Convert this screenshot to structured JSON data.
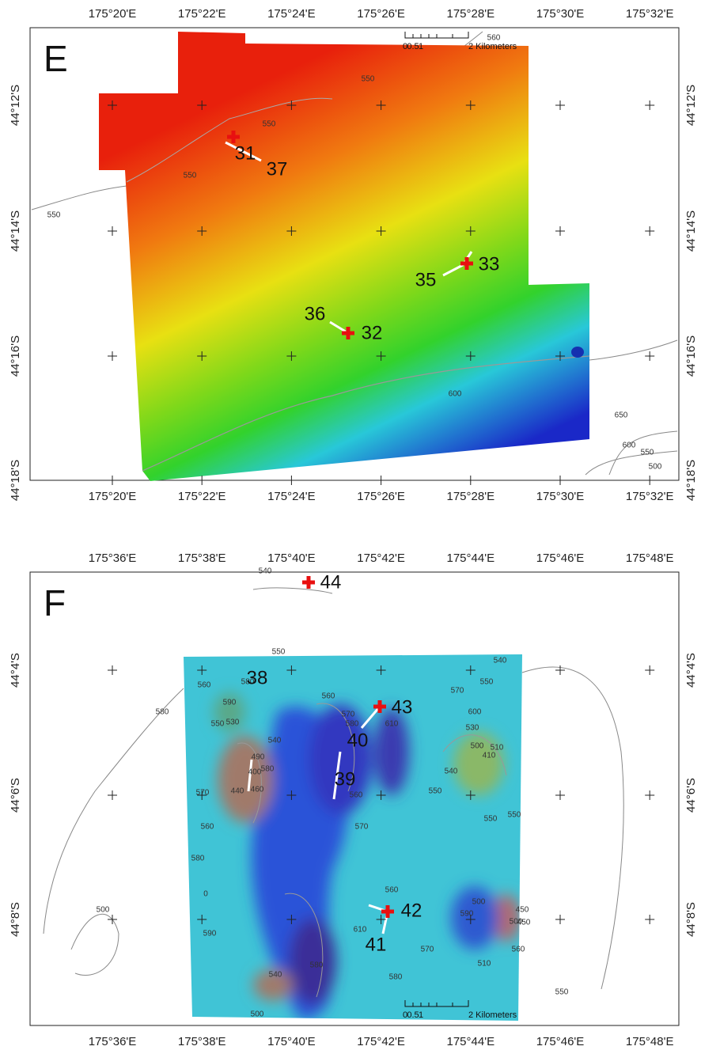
{
  "panels": [
    {
      "label": "E",
      "top_labels": [
        "175°20'E",
        "175°22'E",
        "175°24'E",
        "175°26'E",
        "175°28'E",
        "175°30'E",
        "175°32'E"
      ],
      "bottom_labels": [
        "175°20'E",
        "175°22'E",
        "175°24'E",
        "175°26'E",
        "175°28'E",
        "175°30'E",
        "175°32'E"
      ],
      "left_labels": [
        "44°12'S",
        "44°14'S",
        "44°16'S",
        "44°18'S"
      ],
      "right_labels": [
        "44°12'S",
        "44°14'S",
        "44°16'S",
        "44°18'S"
      ],
      "scale_bar": [
        "0",
        "0.5",
        "1",
        "2 Kilometers"
      ],
      "station_labels": [
        "31",
        "37",
        "33",
        "35",
        "32",
        "36"
      ],
      "contour_labels": [
        "560",
        "550",
        "550",
        "550",
        "550",
        "600",
        "650",
        "600",
        "550",
        "500"
      ]
    },
    {
      "label": "F",
      "top_labels": [
        "175°36'E",
        "175°38'E",
        "175°40'E",
        "175°42'E",
        "175°44'E",
        "175°46'E",
        "175°48'E"
      ],
      "bottom_labels": [
        "175°36'E",
        "175°38'E",
        "175°40'E",
        "175°42'E",
        "175°44'E",
        "175°46'E",
        "175°48'E"
      ],
      "left_labels": [
        "44°4'S",
        "44°6'S",
        "44°8'S"
      ],
      "right_labels": [
        "44°4'S",
        "44°6'S",
        "44°8'S"
      ],
      "scale_bar": [
        "0",
        "0.5",
        "1",
        "2 Kilometers"
      ],
      "station_labels": [
        "44",
        "43",
        "40",
        "38",
        "39",
        "42",
        "41"
      ],
      "contour_labels": [
        "540",
        "550",
        "540",
        "560",
        "580",
        "550",
        "560",
        "570",
        "590",
        "600",
        "550",
        "570",
        "580",
        "530",
        "530",
        "580",
        "610",
        "540",
        "490",
        "500",
        "510",
        "410",
        "400",
        "460",
        "540",
        "550",
        "440",
        "570",
        "580",
        "560",
        "580",
        "560",
        "570",
        "560",
        "550",
        "550",
        "0",
        "590",
        "500",
        "450",
        "570",
        "610",
        "540",
        "580",
        "500",
        "580",
        "550",
        "560",
        "500",
        "450",
        "510",
        "590",
        "500"
      ]
    }
  ]
}
